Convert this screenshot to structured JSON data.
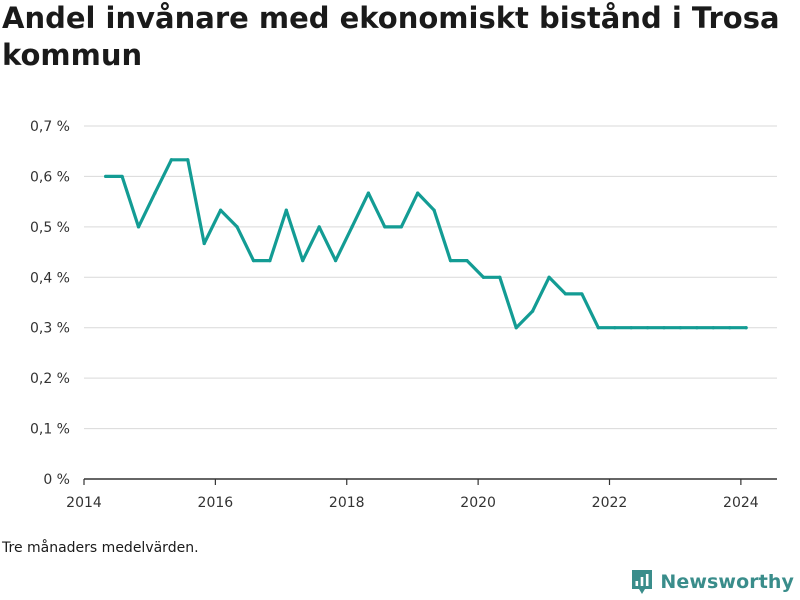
{
  "title": "Andel invånare med ekonomiskt bistånd i Trosa kommun",
  "note": "Tre månaders medelvärden.",
  "brand": {
    "name": "Newsworthy",
    "icon": "newsworthy-logo-icon",
    "color": "#3a8d8b"
  },
  "chart_data": {
    "type": "line",
    "line_color": "#139c94",
    "grid": true,
    "ylim": [
      0,
      0.7
    ],
    "xlim": [
      2014.0,
      2024.55
    ],
    "y_ticks": [
      {
        "value": 0.0,
        "label": "0 %"
      },
      {
        "value": 0.1,
        "label": "0,1 %"
      },
      {
        "value": 0.2,
        "label": "0,2 %"
      },
      {
        "value": 0.3,
        "label": "0,3 %"
      },
      {
        "value": 0.4,
        "label": "0,4 %"
      },
      {
        "value": 0.5,
        "label": "0,5 %"
      },
      {
        "value": 0.6,
        "label": "0,6 %"
      },
      {
        "value": 0.7,
        "label": "0,7 %"
      }
    ],
    "x_ticks": [
      {
        "value": 2014,
        "label": "2014"
      },
      {
        "value": 2016,
        "label": "2016"
      },
      {
        "value": 2018,
        "label": "2018"
      },
      {
        "value": 2020,
        "label": "2020"
      },
      {
        "value": 2022,
        "label": "2022"
      },
      {
        "value": 2024,
        "label": "2024"
      }
    ],
    "series": [
      {
        "x": [
          2014.33,
          2014.58,
          2014.83,
          2015.08,
          2015.33,
          2015.58,
          2015.83,
          2016.08,
          2016.33,
          2016.58,
          2016.83,
          2017.08,
          2017.33,
          2017.58,
          2017.83,
          2018.08,
          2018.33,
          2018.58,
          2018.83,
          2019.08,
          2019.33,
          2019.58,
          2019.83,
          2020.08,
          2020.33,
          2020.58,
          2020.83,
          2021.08,
          2021.33,
          2021.58,
          2021.83,
          2022.08,
          2022.33,
          2022.58,
          2022.83,
          2023.08,
          2023.33,
          2023.58,
          2023.83,
          2024.08
        ],
        "y": [
          0.6,
          0.6,
          0.5,
          0.567,
          0.633,
          0.633,
          0.467,
          0.533,
          0.5,
          0.433,
          0.433,
          0.533,
          0.433,
          0.5,
          0.433,
          0.5,
          0.567,
          0.5,
          0.5,
          0.567,
          0.533,
          0.433,
          0.433,
          0.4,
          0.4,
          0.3,
          0.333,
          0.4,
          0.367,
          0.367,
          0.3,
          0.3,
          0.3,
          0.3,
          0.3,
          0.3,
          0.3,
          0.3,
          0.3,
          0.3
        ]
      }
    ]
  }
}
